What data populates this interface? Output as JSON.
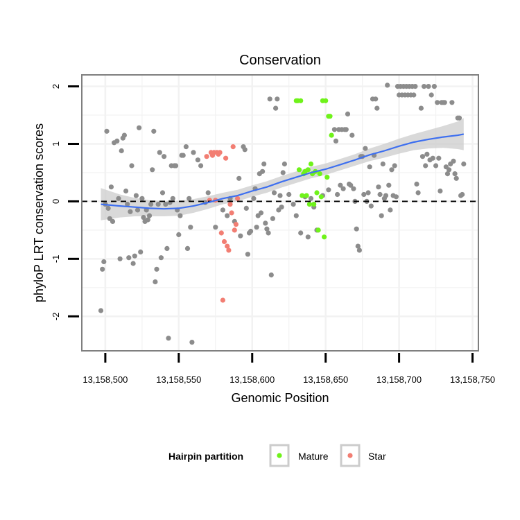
{
  "chart_data": {
    "type": "scatter",
    "title": "Conservation",
    "xlabel": "Genomic Position",
    "ylabel": "phyloP LRT conservation scores",
    "xlim": [
      13158484,
      13158754
    ],
    "ylim": [
      -2.6,
      2.2
    ],
    "x_ticks": [
      13158500,
      13158550,
      13158600,
      13158650,
      13158700,
      13158750
    ],
    "x_tick_labels": [
      "13,158,500",
      "13,158,550",
      "13,158,600",
      "13,158,650",
      "13,158,700",
      "13,158,750"
    ],
    "y_ticks": [
      -2,
      -1,
      0,
      1,
      2
    ],
    "y_tick_labels": [
      "-2",
      "-1",
      "0",
      "1",
      "2"
    ],
    "grid": true,
    "reference_line": {
      "y": 0,
      "style": "dashed"
    },
    "colors": {
      "other": "#8c8c8c",
      "mature": "#6ff21a",
      "star": "#f27e73",
      "smooth": "#3d6ff0",
      "band": "#cccccc",
      "panel_border": "#7f7f7f",
      "grid": "#f2f2f2"
    },
    "legend": {
      "title": "Hairpin partition",
      "placement": "bottom",
      "entries": [
        {
          "label": "Mature",
          "series": "mature"
        },
        {
          "label": "Star",
          "series": "star"
        }
      ]
    },
    "series": [
      {
        "name": "other",
        "points": [
          [
            13158497,
            -1.9
          ],
          [
            13158498,
            -1.18
          ],
          [
            13158499,
            -1.05
          ],
          [
            13158500,
            -0.05
          ],
          [
            13158501,
            1.22
          ],
          [
            13158502,
            -0.12
          ],
          [
            13158503,
            -0.3
          ],
          [
            13158504,
            0.25
          ],
          [
            13158505,
            -0.35
          ],
          [
            13158506,
            1.02
          ],
          [
            13158508,
            1.05
          ],
          [
            13158509,
            0.05
          ],
          [
            13158510,
            -1.0
          ],
          [
            13158511,
            0.88
          ],
          [
            13158512,
            1.1
          ],
          [
            13158513,
            1.15
          ],
          [
            13158514,
            0.18
          ],
          [
            13158515,
            -0.05
          ],
          [
            13158516,
            -0.98
          ],
          [
            13158517,
            -0.18
          ],
          [
            13158518,
            0.62
          ],
          [
            13158519,
            -1.08
          ],
          [
            13158520,
            -0.95
          ],
          [
            13158521,
            0.1
          ],
          [
            13158522,
            -0.15
          ],
          [
            13158523,
            1.28
          ],
          [
            13158524,
            -0.88
          ],
          [
            13158525,
            0.05
          ],
          [
            13158526,
            -0.28
          ],
          [
            13158527,
            -0.35
          ],
          [
            13158528,
            -0.15
          ],
          [
            13158529,
            -0.32
          ],
          [
            13158530,
            -0.25
          ],
          [
            13158531,
            -0.05
          ],
          [
            13158532,
            0.55
          ],
          [
            13158533,
            1.22
          ],
          [
            13158534,
            -1.4
          ],
          [
            13158535,
            -1.18
          ],
          [
            13158536,
            -0.05
          ],
          [
            13158537,
            0.85
          ],
          [
            13158538,
            -0.98
          ],
          [
            13158539,
            0.15
          ],
          [
            13158540,
            0.78
          ],
          [
            13158541,
            -0.05
          ],
          [
            13158542,
            -0.82
          ],
          [
            13158543,
            -2.38
          ],
          [
            13158544,
            -0.02
          ],
          [
            13158545,
            0.62
          ],
          [
            13158546,
            0.05
          ],
          [
            13158547,
            0.62
          ],
          [
            13158548,
            0.62
          ],
          [
            13158549,
            -0.15
          ],
          [
            13158550,
            -0.58
          ],
          [
            13158551,
            -0.25
          ],
          [
            13158552,
            0.8
          ],
          [
            13158553,
            0.8
          ],
          [
            13158555,
            0.95
          ],
          [
            13158556,
            -0.82
          ],
          [
            13158557,
            0.05
          ],
          [
            13158558,
            -0.45
          ],
          [
            13158559,
            -2.45
          ],
          [
            13158560,
            0.85
          ],
          [
            13158563,
            0.72
          ],
          [
            13158565,
            0.62
          ],
          [
            13158568,
            -0.02
          ],
          [
            13158570,
            0.15
          ],
          [
            13158575,
            -0.45
          ],
          [
            13158580,
            -0.15
          ],
          [
            13158583,
            -0.25
          ],
          [
            13158585,
            0.05
          ],
          [
            13158588,
            -0.35
          ],
          [
            13158591,
            0.4
          ],
          [
            13158592,
            -0.6
          ],
          [
            13158594,
            0.95
          ],
          [
            13158595,
            0.9
          ],
          [
            13158596,
            -0.12
          ],
          [
            13158597,
            -0.92
          ],
          [
            13158598,
            -0.55
          ],
          [
            13158599,
            -0.52
          ],
          [
            13158601,
            0.05
          ],
          [
            13158602,
            0.22
          ],
          [
            13158603,
            -0.45
          ],
          [
            13158604,
            -0.25
          ],
          [
            13158605,
            0.48
          ],
          [
            13158606,
            -0.2
          ],
          [
            13158607,
            0.52
          ],
          [
            13158608,
            0.65
          ],
          [
            13158609,
            -0.38
          ],
          [
            13158610,
            -0.48
          ],
          [
            13158611,
            -0.55
          ],
          [
            13158612,
            1.78
          ],
          [
            13158613,
            -1.28
          ],
          [
            13158614,
            -0.3
          ],
          [
            13158615,
            0.15
          ],
          [
            13158616,
            1.62
          ],
          [
            13158617,
            1.78
          ],
          [
            13158618,
            -0.15
          ],
          [
            13158619,
            0.1
          ],
          [
            13158620,
            -0.1
          ],
          [
            13158621,
            0.5
          ],
          [
            13158622,
            0.65
          ],
          [
            13158625,
            0.12
          ],
          [
            13158628,
            -0.05
          ],
          [
            13158630,
            -0.25
          ],
          [
            13158633,
            -0.55
          ],
          [
            13158636,
            0.08
          ],
          [
            13158638,
            -0.62
          ],
          [
            13158640,
            0.05
          ],
          [
            13158642,
            -0.1
          ],
          [
            13158644,
            -0.5
          ],
          [
            13158648,
            0.1
          ],
          [
            13158652,
            0.2
          ],
          [
            13158656,
            1.25
          ],
          [
            13158657,
            1.05
          ],
          [
            13158658,
            0.12
          ],
          [
            13158659,
            1.25
          ],
          [
            13158660,
            0.28
          ],
          [
            13158661,
            1.25
          ],
          [
            13158662,
            0.22
          ],
          [
            13158663,
            1.25
          ],
          [
            13158664,
            1.25
          ],
          [
            13158665,
            1.52
          ],
          [
            13158666,
            0.3
          ],
          [
            13158667,
            0.28
          ],
          [
            13158668,
            1.15
          ],
          [
            13158669,
            0.22
          ],
          [
            13158670,
            0.0
          ],
          [
            13158671,
            -0.48
          ],
          [
            13158672,
            -0.78
          ],
          [
            13158673,
            -0.85
          ],
          [
            13158674,
            0.78
          ],
          [
            13158675,
            0.78
          ],
          [
            13158676,
            0.12
          ],
          [
            13158677,
            0.92
          ],
          [
            13158678,
            0.0
          ],
          [
            13158679,
            0.15
          ],
          [
            13158680,
            0.6
          ],
          [
            13158681,
            -0.08
          ],
          [
            13158682,
            1.78
          ],
          [
            13158683,
            0.8
          ],
          [
            13158684,
            1.78
          ],
          [
            13158685,
            1.62
          ],
          [
            13158686,
            0.25
          ],
          [
            13158687,
            0.12
          ],
          [
            13158688,
            -0.25
          ],
          [
            13158689,
            0.65
          ],
          [
            13158690,
            0.05
          ],
          [
            13158691,
            0.1
          ],
          [
            13158692,
            2.02
          ],
          [
            13158693,
            0.28
          ],
          [
            13158694,
            -0.15
          ],
          [
            13158695,
            0.55
          ],
          [
            13158696,
            0.1
          ],
          [
            13158697,
            0.62
          ],
          [
            13158698,
            0.08
          ],
          [
            13158699,
            2.0
          ],
          [
            13158700,
            1.85
          ],
          [
            13158701,
            2.0
          ],
          [
            13158702,
            1.85
          ],
          [
            13158703,
            2.0
          ],
          [
            13158704,
            1.85
          ],
          [
            13158705,
            2.0
          ],
          [
            13158706,
            1.85
          ],
          [
            13158707,
            2.0
          ],
          [
            13158708,
            1.85
          ],
          [
            13158709,
            2.0
          ],
          [
            13158710,
            1.85
          ],
          [
            13158711,
            2.0
          ],
          [
            13158712,
            0.3
          ],
          [
            13158713,
            0.15
          ],
          [
            13158715,
            1.62
          ],
          [
            13158716,
            0.78
          ],
          [
            13158717,
            2.0
          ],
          [
            13158718,
            0.62
          ],
          [
            13158719,
            0.82
          ],
          [
            13158720,
            2.0
          ],
          [
            13158721,
            0.72
          ],
          [
            13158722,
            1.85
          ],
          [
            13158723,
            0.75
          ],
          [
            13158724,
            2.0
          ],
          [
            13158725,
            0.62
          ],
          [
            13158726,
            1.72
          ],
          [
            13158727,
            0.75
          ],
          [
            13158728,
            0.18
          ],
          [
            13158729,
            1.72
          ],
          [
            13158730,
            1.72
          ],
          [
            13158731,
            1.72
          ],
          [
            13158732,
            0.6
          ],
          [
            13158733,
            0.48
          ],
          [
            13158734,
            0.55
          ],
          [
            13158735,
            0.65
          ],
          [
            13158736,
            1.72
          ],
          [
            13158737,
            0.7
          ],
          [
            13158738,
            0.48
          ],
          [
            13158739,
            0.4
          ],
          [
            13158740,
            1.45
          ],
          [
            13158741,
            1.45
          ],
          [
            13158742,
            0.1
          ],
          [
            13158743,
            0.12
          ],
          [
            13158744,
            0.65
          ]
        ]
      },
      {
        "name": "mature",
        "points": [
          [
            13158630,
            1.75
          ],
          [
            13158631,
            1.75
          ],
          [
            13158632,
            0.55
          ],
          [
            13158633,
            1.75
          ],
          [
            13158634,
            0.1
          ],
          [
            13158635,
            0.48
          ],
          [
            13158636,
            0.52
          ],
          [
            13158637,
            0.1
          ],
          [
            13158638,
            0.55
          ],
          [
            13158639,
            -0.05
          ],
          [
            13158640,
            0.65
          ],
          [
            13158641,
            0.48
          ],
          [
            13158642,
            -0.05
          ],
          [
            13158643,
            0.52
          ],
          [
            13158644,
            0.15
          ],
          [
            13158645,
            -0.5
          ],
          [
            13158646,
            0.48
          ],
          [
            13158647,
            0.08
          ],
          [
            13158648,
            1.75
          ],
          [
            13158649,
            -0.62
          ],
          [
            13158650,
            1.75
          ],
          [
            13158651,
            0.42
          ],
          [
            13158652,
            1.48
          ],
          [
            13158653,
            1.48
          ],
          [
            13158654,
            1.15
          ]
        ]
      },
      {
        "name": "star",
        "points": [
          [
            13158569,
            0.78
          ],
          [
            13158571,
            0.02
          ],
          [
            13158572,
            0.85
          ],
          [
            13158573,
            0.8
          ],
          [
            13158574,
            0.85
          ],
          [
            13158575,
            0.02
          ],
          [
            13158576,
            0.85
          ],
          [
            13158577,
            0.82
          ],
          [
            13158578,
            0.85
          ],
          [
            13158579,
            -0.55
          ],
          [
            13158580,
            -1.72
          ],
          [
            13158581,
            -0.7
          ],
          [
            13158582,
            0.75
          ],
          [
            13158583,
            -0.78
          ],
          [
            13158584,
            -0.85
          ],
          [
            13158585,
            -0.05
          ],
          [
            13158586,
            -0.2
          ],
          [
            13158587,
            0.95
          ],
          [
            13158588,
            -0.5
          ],
          [
            13158589,
            -0.4
          ],
          [
            13158590,
            0.05
          ]
        ]
      }
    ],
    "smooth": {
      "x": [
        13158497,
        13158510,
        13158520,
        13158530,
        13158540,
        13158550,
        13158560,
        13158570,
        13158580,
        13158590,
        13158600,
        13158610,
        13158620,
        13158630,
        13158640,
        13158650,
        13158660,
        13158670,
        13158680,
        13158690,
        13158700,
        13158710,
        13158720,
        13158730,
        13158740,
        13158744
      ],
      "y": [
        -0.05,
        -0.08,
        -0.1,
        -0.12,
        -0.13,
        -0.12,
        -0.08,
        -0.02,
        0.05,
        0.1,
        0.18,
        0.25,
        0.34,
        0.42,
        0.5,
        0.56,
        0.64,
        0.72,
        0.81,
        0.88,
        0.96,
        1.03,
        1.08,
        1.12,
        1.15,
        1.17
      ],
      "band": [
        0.28,
        0.2,
        0.16,
        0.14,
        0.13,
        0.13,
        0.12,
        0.11,
        0.1,
        0.1,
        0.1,
        0.1,
        0.1,
        0.1,
        0.1,
        0.1,
        0.1,
        0.1,
        0.11,
        0.12,
        0.13,
        0.14,
        0.16,
        0.19,
        0.24,
        0.28
      ]
    }
  }
}
